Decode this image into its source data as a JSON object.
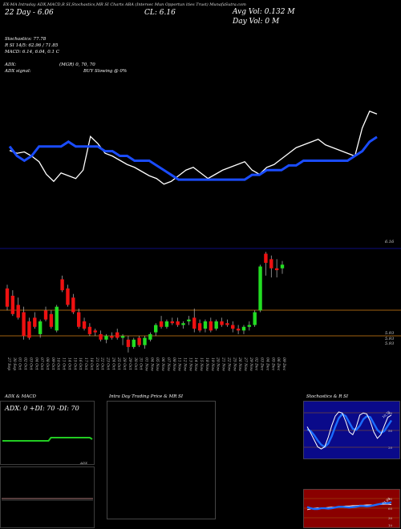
{
  "header": {
    "line1": "EX-MA Intraday ADX,MACD,R       SI,Stochastics,MR        SI Charts ABA         (Intersec  Mun                       Opportun                 ities Trust) MunafaSutra.com",
    "day": "22 Day - 6.06",
    "close_label": "CL: 6.16",
    "avg_vol": "Avg Vol: 0.132  M",
    "day_vol": "Day Vol: 0   M"
  },
  "indicators": {
    "stoch": "Stochastics: 77.78",
    "rsi": "R            SI 14/5: 62.96  / 71.85",
    "macd": "MACD: 6.14, 6.04, 0.1 C",
    "adx": "ADX:",
    "mgr": "(MGR) 0,  70,  70",
    "adx_signal": "ADX  signal:",
    "buy": "BUY Slowing @ 0%"
  },
  "price_levels": {
    "upper": "6.16",
    "low1": "5.93",
    "low2": "5.93",
    "low3": "5.93"
  },
  "panels": {
    "adx_title": "ADX  & MACD",
    "adx_values": "ADX: 0   +DI: 70   -DI: 70",
    "adx_mark": "ADX",
    "intraday_title": "Intra  Day Trading Price  & MR                      SI",
    "stoch_title": "Stochastics & R                            SI",
    "stoch_mark": "10,75",
    "rsi_mark": "61.93",
    "stoch_ticks": [
      "80",
      "50",
      "20"
    ],
    "rsi_ticks": [
      "90",
      "60",
      "30",
      "10"
    ]
  },
  "colors": {
    "up": "#22dd22",
    "down": "#ee1111",
    "ma": "#1a4cff",
    "level": "#a06010",
    "stoch_bg": "#0a0a8a",
    "rsi_bg": "#8a0000"
  },
  "chart_data": {
    "type": "candlestick",
    "title": "",
    "dates": [
      "27 Sep",
      "30 Sep",
      "01 Oct",
      "02 Oct",
      "03 Oct",
      "04 Oct",
      "07 Oct",
      "08 Oct",
      "09 Oct",
      "10 Oct",
      "11 Oct",
      "14 Oct",
      "15 Oct",
      "16 Oct",
      "17 Oct",
      "18 Oct",
      "21 Oct",
      "22 Oct",
      "23 Oct",
      "24 Oct",
      "25 Oct",
      "28 Oct",
      "29 Oct",
      "30 Oct",
      "31 Oct",
      "01 Nov",
      "04 Nov",
      "05 Nov",
      "06 Nov",
      "07 Nov",
      "08 Nov",
      "11 Nov",
      "12 Nov",
      "13 Nov",
      "14 Nov",
      "15 Nov",
      "18 Nov",
      "19 Nov",
      "20 Nov",
      "21 Nov",
      "22 Nov",
      "25 Nov",
      "26 Nov",
      "27 Nov",
      "29 Nov",
      "02 Dec",
      "03 Dec",
      "04 Dec",
      "05 Dec",
      "06 Dec",
      "09 Dec"
    ],
    "ylim": [
      5.62,
      6.33
    ],
    "candles": [
      {
        "o": 5.98,
        "h": 6.0,
        "l": 5.86,
        "c": 5.88
      },
      {
        "o": 5.94,
        "h": 5.97,
        "l": 5.83,
        "c": 5.84
      },
      {
        "o": 5.89,
        "h": 5.93,
        "l": 5.81,
        "c": 5.82
      },
      {
        "o": 5.85,
        "h": 5.88,
        "l": 5.7,
        "c": 5.72
      },
      {
        "o": 5.8,
        "h": 5.82,
        "l": 5.7,
        "c": 5.71
      },
      {
        "o": 5.82,
        "h": 5.85,
        "l": 5.76,
        "c": 5.77
      },
      {
        "o": 5.73,
        "h": 5.81,
        "l": 5.71,
        "c": 5.8
      },
      {
        "o": 5.86,
        "h": 5.88,
        "l": 5.8,
        "c": 5.81
      },
      {
        "o": 5.84,
        "h": 5.86,
        "l": 5.76,
        "c": 5.77
      },
      {
        "o": 5.75,
        "h": 5.89,
        "l": 5.74,
        "c": 5.88
      },
      {
        "o": 6.03,
        "h": 6.05,
        "l": 5.96,
        "c": 5.97
      },
      {
        "o": 5.98,
        "h": 6.0,
        "l": 5.88,
        "c": 5.89
      },
      {
        "o": 5.93,
        "h": 5.95,
        "l": 5.84,
        "c": 5.85
      },
      {
        "o": 5.85,
        "h": 5.87,
        "l": 5.76,
        "c": 5.77
      },
      {
        "o": 5.8,
        "h": 5.82,
        "l": 5.75,
        "c": 5.76
      },
      {
        "o": 5.77,
        "h": 5.79,
        "l": 5.72,
        "c": 5.73
      },
      {
        "o": 5.75,
        "h": 5.76,
        "l": 5.72,
        "c": 5.74
      },
      {
        "o": 5.73,
        "h": 5.75,
        "l": 5.69,
        "c": 5.7
      },
      {
        "o": 5.7,
        "h": 5.73,
        "l": 5.68,
        "c": 5.72
      },
      {
        "o": 5.72,
        "h": 5.74,
        "l": 5.7,
        "c": 5.71
      },
      {
        "o": 5.74,
        "h": 5.76,
        "l": 5.7,
        "c": 5.71
      },
      {
        "o": 5.71,
        "h": 5.73,
        "l": 5.67,
        "c": 5.72
      },
      {
        "o": 5.7,
        "h": 5.72,
        "l": 5.63,
        "c": 5.66
      },
      {
        "o": 5.66,
        "h": 5.71,
        "l": 5.65,
        "c": 5.7
      },
      {
        "o": 5.71,
        "h": 5.72,
        "l": 5.66,
        "c": 5.67
      },
      {
        "o": 5.67,
        "h": 5.72,
        "l": 5.65,
        "c": 5.71
      },
      {
        "o": 5.7,
        "h": 5.74,
        "l": 5.69,
        "c": 5.73
      },
      {
        "o": 5.74,
        "h": 5.79,
        "l": 5.72,
        "c": 5.78
      },
      {
        "o": 5.8,
        "h": 5.83,
        "l": 5.76,
        "c": 5.77
      },
      {
        "o": 5.77,
        "h": 5.81,
        "l": 5.76,
        "c": 5.8
      },
      {
        "o": 5.8,
        "h": 5.82,
        "l": 5.78,
        "c": 5.79
      },
      {
        "o": 5.8,
        "h": 5.82,
        "l": 5.77,
        "c": 5.78
      },
      {
        "o": 5.78,
        "h": 5.8,
        "l": 5.76,
        "c": 5.79
      },
      {
        "o": 5.8,
        "h": 5.83,
        "l": 5.78,
        "c": 5.81
      },
      {
        "o": 5.82,
        "h": 5.87,
        "l": 5.74,
        "c": 5.76
      },
      {
        "o": 5.79,
        "h": 5.81,
        "l": 5.74,
        "c": 5.75
      },
      {
        "o": 5.76,
        "h": 5.81,
        "l": 5.74,
        "c": 5.8
      },
      {
        "o": 5.8,
        "h": 5.82,
        "l": 5.74,
        "c": 5.75
      },
      {
        "o": 5.76,
        "h": 5.81,
        "l": 5.75,
        "c": 5.8
      },
      {
        "o": 5.8,
        "h": 5.82,
        "l": 5.77,
        "c": 5.78
      },
      {
        "o": 5.79,
        "h": 5.81,
        "l": 5.77,
        "c": 5.78
      },
      {
        "o": 5.78,
        "h": 5.8,
        "l": 5.74,
        "c": 5.76
      },
      {
        "o": 5.76,
        "h": 5.78,
        "l": 5.73,
        "c": 5.75
      },
      {
        "o": 5.75,
        "h": 5.78,
        "l": 5.73,
        "c": 5.77
      },
      {
        "o": 5.77,
        "h": 5.8,
        "l": 5.75,
        "c": 5.78
      },
      {
        "o": 5.78,
        "h": 5.86,
        "l": 5.77,
        "c": 5.85
      },
      {
        "o": 5.86,
        "h": 6.11,
        "l": 5.85,
        "c": 6.1
      },
      {
        "o": 6.17,
        "h": 6.18,
        "l": 6.05,
        "c": 6.12
      },
      {
        "o": 6.14,
        "h": 6.16,
        "l": 6.04,
        "c": 6.09
      },
      {
        "o": 6.09,
        "h": 6.14,
        "l": 6.04,
        "c": 6.08
      },
      {
        "o": 6.09,
        "h": 6.13,
        "l": 6.06,
        "c": 6.11
      }
    ],
    "ma": [
      6.06,
      6.04,
      6.03,
      6.04,
      6.06,
      6.06,
      6.06,
      6.06,
      6.07,
      6.06,
      6.06,
      6.06,
      6.06,
      6.05,
      6.05,
      6.04,
      6.04,
      6.03,
      6.03,
      6.03,
      6.02,
      6.01,
      6.0,
      5.99,
      5.99,
      5.99,
      5.99,
      5.99,
      5.99,
      5.99,
      5.99,
      5.99,
      5.99,
      6.0,
      6.0,
      6.01,
      6.01,
      6.01,
      6.02,
      6.02,
      6.03,
      6.03,
      6.03,
      6.03,
      6.03,
      6.03,
      6.03,
      6.04,
      6.05,
      6.07,
      6.08
    ],
    "stoch_main": [
      62,
      60,
      61,
      58,
      54,
      45,
      40,
      46,
      44,
      42,
      48,
      72,
      67,
      60,
      58,
      55,
      52,
      50,
      47,
      44,
      42,
      38,
      40,
      44,
      48,
      50,
      46,
      42,
      45,
      48,
      50,
      52,
      54,
      48,
      45,
      50,
      52,
      56,
      60,
      64,
      66,
      68,
      70,
      66,
      64,
      62,
      60,
      58,
      78,
      90,
      88
    ],
    "stoch_fast": [
      40,
      52,
      58,
      60,
      58,
      56,
      50,
      48,
      46,
      44,
      46,
      52,
      58,
      62,
      60,
      58,
      56,
      54,
      52,
      50,
      48,
      44,
      42,
      42,
      44,
      46,
      47,
      45,
      44,
      45,
      47,
      49,
      51,
      50,
      48,
      48,
      50,
      52,
      55,
      58,
      61,
      63,
      65,
      65,
      64,
      63,
      62,
      60,
      66,
      76,
      82
    ],
    "adx_line": [
      0.75,
      0.75,
      0.75,
      0.75,
      0.75,
      0.75,
      0.75,
      0.75,
      0.75,
      0.75,
      0.75,
      0.75,
      0.75,
      0.75,
      0.75,
      0.75,
      0.75,
      0.75,
      0.75,
      0.75,
      0.85,
      0.85,
      0.85,
      0.85,
      0.85,
      0.85,
      0.85,
      0.85,
      0.85,
      0.85,
      0.85,
      0.85,
      0.85,
      0.85,
      0.85,
      0.85,
      0.85,
      0.8
    ],
    "stoch_panel": {
      "k": [
        60,
        48,
        35,
        22,
        18,
        22,
        40,
        62,
        80,
        88,
        86,
        70,
        50,
        45,
        60,
        82,
        86,
        84,
        70,
        50,
        38,
        45,
        62,
        78,
        82
      ],
      "d": [
        55,
        52,
        44,
        34,
        26,
        22,
        28,
        42,
        60,
        76,
        84,
        80,
        68,
        56,
        54,
        62,
        74,
        80,
        78,
        66,
        54,
        48,
        52,
        62,
        72
      ]
    },
    "rsi_panel": {
      "a": [
        55,
        52,
        50,
        50,
        52,
        52,
        51,
        52,
        54,
        56,
        56,
        55,
        54,
        55,
        56,
        58,
        58,
        57,
        58,
        60,
        62,
        64,
        66,
        66,
        68
      ],
      "b": [
        48,
        50,
        52,
        53,
        52,
        53,
        54,
        55,
        55,
        56,
        57,
        58,
        58,
        59,
        59,
        60,
        60,
        61,
        61,
        61,
        62,
        62,
        63,
        63,
        62
      ]
    }
  }
}
